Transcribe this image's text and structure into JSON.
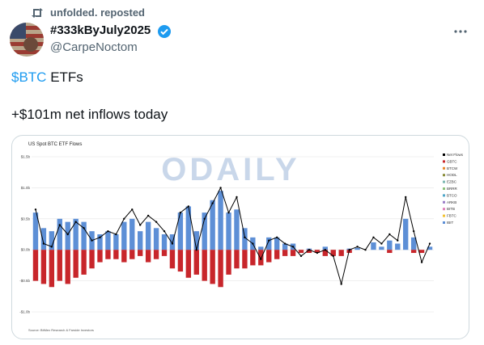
{
  "repost": "unfolded. reposted",
  "author": {
    "name": "#333kByJuly2025",
    "handle": "@CarpeNoctom"
  },
  "text": {
    "cashtag": "$BTC",
    "rest": " ETFs",
    "line2": "+$101m net inflows today"
  },
  "chart_data": {
    "type": "bar",
    "title": "US Spot BTC ETF Flows",
    "watermark": "ODAILY",
    "source": "Source: BitMex Research & Farside Investors",
    "ylim": [
      -1.0,
      1.5
    ],
    "yticks": [
      {
        "value": 1.5,
        "label": "$1.5b"
      },
      {
        "value": 1.0,
        "label": "$1.0b"
      },
      {
        "value": 0.5,
        "label": "$0.5b"
      },
      {
        "value": 0.0,
        "label": "$0.0b"
      },
      {
        "value": -0.5,
        "label": "-$0.5b"
      },
      {
        "value": -1.0,
        "label": "-$1.0b"
      }
    ],
    "legend": [
      {
        "name": "Net Flows",
        "color": "#000000"
      },
      {
        "name": "GBTC",
        "color": "#c8262b"
      },
      {
        "name": "BTCW",
        "color": "#e9882b"
      },
      {
        "name": "HODL",
        "color": "#8a8d3a"
      },
      {
        "name": "EZBC",
        "color": "#7ab6b0"
      },
      {
        "name": "BRRR",
        "color": "#8dc17a"
      },
      {
        "name": "BTCO",
        "color": "#4fa6c9"
      },
      {
        "name": "ARKB",
        "color": "#9b7ec7"
      },
      {
        "name": "BITB",
        "color": "#e07fb8"
      },
      {
        "name": "FBTC",
        "color": "#f2c230"
      },
      {
        "name": "IBIT",
        "color": "#5d8fd6"
      }
    ],
    "series": [
      {
        "name": "IBIT",
        "type": "bar",
        "color": "#5d8fd6",
        "values": [
          0.6,
          0.35,
          0.3,
          0.5,
          0.45,
          0.5,
          0.45,
          0.3,
          0.25,
          0.3,
          0.25,
          0.45,
          0.5,
          0.3,
          0.45,
          0.35,
          0.25,
          0.25,
          0.6,
          0.7,
          0.3,
          0.6,
          0.8,
          0.95,
          0.6,
          0.65,
          0.35,
          0.2,
          0.05,
          0.2,
          0.2,
          0.1,
          0.1,
          0,
          0.02,
          0,
          0.05,
          0,
          0,
          0.02,
          0.03,
          0,
          0.12,
          0.05,
          0.15,
          0.1,
          0.5,
          0.2,
          0,
          0.05
        ]
      },
      {
        "name": "GBTC",
        "type": "bar",
        "color": "#c8262b",
        "values": [
          -0.5,
          -0.55,
          -0.6,
          -0.5,
          -0.55,
          -0.45,
          -0.4,
          -0.3,
          -0.2,
          -0.15,
          -0.15,
          -0.2,
          -0.15,
          -0.1,
          -0.2,
          -0.15,
          -0.1,
          -0.3,
          -0.35,
          -0.45,
          -0.4,
          -0.5,
          -0.55,
          -0.6,
          -0.4,
          -0.3,
          -0.3,
          -0.25,
          -0.25,
          -0.2,
          -0.15,
          -0.1,
          -0.1,
          -0.05,
          -0.05,
          -0.05,
          -0.1,
          -0.1,
          -0.1,
          -0.05,
          0,
          0,
          0,
          0,
          -0.05,
          0,
          0,
          -0.05,
          -0.05,
          0
        ]
      },
      {
        "name": "Net Flows",
        "type": "line",
        "color": "#000000",
        "values": [
          0.65,
          0.1,
          0.05,
          0.4,
          0.25,
          0.45,
          0.35,
          0.15,
          0.2,
          0.3,
          0.25,
          0.5,
          0.65,
          0.4,
          0.55,
          0.45,
          0.3,
          0.1,
          0.6,
          0.7,
          0.0,
          0.5,
          0.75,
          1.0,
          0.6,
          0.85,
          0.2,
          0.1,
          -0.15,
          0.15,
          0.2,
          0.1,
          0.05,
          -0.1,
          0.0,
          -0.05,
          0.0,
          -0.1,
          -0.55,
          0.0,
          0.05,
          0.0,
          0.2,
          0.1,
          0.25,
          0.15,
          0.85,
          0.3,
          -0.2,
          0.1
        ]
      }
    ]
  }
}
